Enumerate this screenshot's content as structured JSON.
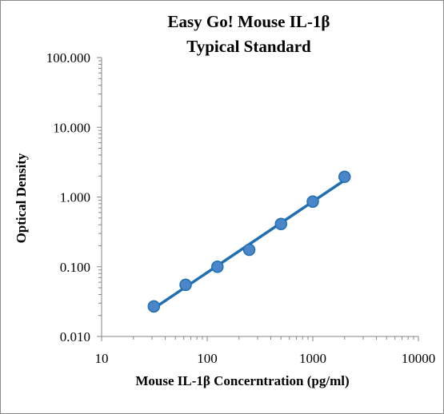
{
  "chart_data": {
    "type": "scatter",
    "title_lines": [
      "Easy Go! Mouse IL-1β",
      "Typical Standard"
    ],
    "xlabel": "Mouse IL-1β Concerntration (pg/ml)",
    "ylabel": "Optical Density",
    "x_scale": "log",
    "y_scale": "log",
    "xlim": [
      10,
      10000
    ],
    "ylim": [
      0.01,
      100
    ],
    "x_ticks": [
      "10",
      "100",
      "1000",
      "10000"
    ],
    "y_ticks": [
      "0.010",
      "0.100",
      "1.000",
      "10.000",
      "100.000"
    ],
    "grid": false,
    "legend": "none",
    "series": [
      {
        "x": [
          31.25,
          62.5,
          125,
          250,
          500,
          1000,
          2000
        ],
        "y": [
          0.027,
          0.055,
          0.1,
          0.175,
          0.41,
          0.86,
          1.95
        ],
        "trendline": "power",
        "color": "#1f6fb2",
        "marker_color": "#4a86c8"
      }
    ]
  }
}
